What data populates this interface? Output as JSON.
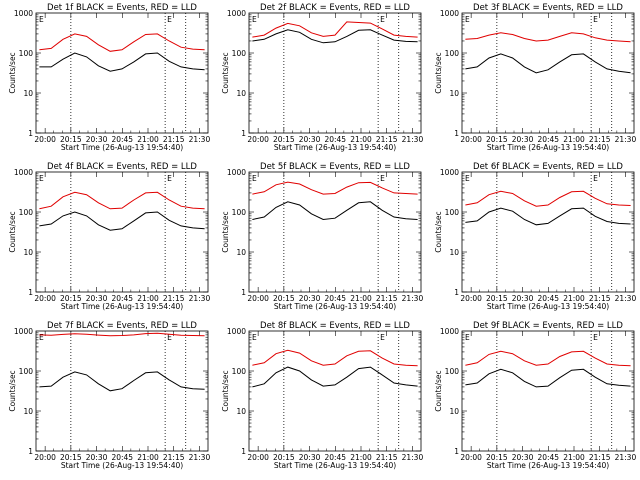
{
  "chart_data": [
    {
      "id": "det1",
      "type": "line",
      "title": "Det 1f BLACK = Events, RED = LLD",
      "ylabel": "Counts/sec",
      "xlabel": "Start Time (26-Aug-13 19:54:40)",
      "x_ticks": [
        "20:00",
        "20:15",
        "20:30",
        "20:45",
        "21:00",
        "21:15",
        "21:30"
      ],
      "y_ticks": [
        "1",
        "10",
        "100",
        "1000"
      ],
      "ylim": [
        1,
        1000
      ],
      "y_scale": "log",
      "markers": [
        "20:15",
        "21:10",
        "21:22"
      ],
      "marker_label": "E",
      "series": [
        {
          "color": "#000000",
          "values": [
            45,
            45,
            70,
            100,
            80,
            48,
            35,
            40,
            60,
            95,
            100,
            62,
            45,
            40,
            38
          ]
        },
        {
          "color": "#e00000",
          "values": [
            120,
            130,
            220,
            300,
            260,
            160,
            110,
            120,
            190,
            290,
            300,
            200,
            140,
            125,
            120
          ]
        }
      ]
    },
    {
      "id": "det2",
      "type": "line",
      "title": "Det 2f BLACK = Events, RED = LLD",
      "ylabel": "Counts/sec",
      "xlabel": "Start Time (26-Aug-13 19:54:40)",
      "x_ticks": [
        "20:00",
        "20:15",
        "20:30",
        "20:45",
        "21:00",
        "21:15",
        "21:30"
      ],
      "y_ticks": [
        "1",
        "10",
        "100",
        "1000"
      ],
      "ylim": [
        1,
        1000
      ],
      "y_scale": "log",
      "markers": [
        "20:15",
        "21:10",
        "21:22"
      ],
      "marker_label": "E",
      "series": [
        {
          "color": "#000000",
          "values": [
            200,
            220,
            300,
            380,
            330,
            220,
            180,
            190,
            260,
            370,
            380,
            280,
            210,
            195,
            190
          ]
        },
        {
          "color": "#e00000",
          "values": [
            250,
            280,
            420,
            550,
            480,
            320,
            260,
            280,
            600,
            580,
            560,
            400,
            280,
            260,
            250
          ]
        }
      ]
    },
    {
      "id": "det3",
      "type": "line",
      "title": "Det 3f BLACK = Events, RED = LLD",
      "ylabel": "Counts/sec",
      "xlabel": "Start Time (26-Aug-13 19:54:40)",
      "x_ticks": [
        "20:00",
        "20:15",
        "20:30",
        "20:45",
        "21:00",
        "21:15",
        "21:30"
      ],
      "y_ticks": [
        "1",
        "10",
        "100",
        "1000"
      ],
      "ylim": [
        1,
        1000
      ],
      "y_scale": "log",
      "markers": [
        "20:15",
        "21:10",
        "21:22"
      ],
      "marker_label": "E",
      "series": [
        {
          "color": "#000000",
          "values": [
            40,
            45,
            75,
            95,
            75,
            45,
            32,
            38,
            60,
            90,
            95,
            60,
            40,
            35,
            32
          ]
        },
        {
          "color": "#e00000",
          "values": [
            220,
            230,
            280,
            320,
            290,
            230,
            200,
            210,
            260,
            320,
            300,
            240,
            210,
            200,
            190
          ]
        }
      ]
    },
    {
      "id": "det4",
      "type": "line",
      "title": "Det 4f BLACK = Events, RED = LLD",
      "ylabel": "Counts/sec",
      "xlabel": "Start Time (26-Aug-13 19:54:40)",
      "x_ticks": [
        "20:00",
        "20:15",
        "20:30",
        "20:45",
        "21:00",
        "21:15",
        "21:30"
      ],
      "y_ticks": [
        "1",
        "10",
        "100",
        "1000"
      ],
      "ylim": [
        1,
        1000
      ],
      "y_scale": "log",
      "markers": [
        "20:15",
        "21:10",
        "21:22"
      ],
      "marker_label": "E",
      "series": [
        {
          "color": "#000000",
          "values": [
            45,
            50,
            80,
            100,
            80,
            48,
            35,
            38,
            60,
            95,
            100,
            62,
            45,
            40,
            38
          ]
        },
        {
          "color": "#e00000",
          "values": [
            120,
            140,
            240,
            310,
            270,
            170,
            120,
            125,
            200,
            300,
            310,
            200,
            140,
            125,
            120
          ]
        }
      ]
    },
    {
      "id": "det5",
      "type": "line",
      "title": "Det 5f BLACK = Events, RED = LLD",
      "ylabel": "Counts/sec",
      "xlabel": "Start Time (26-Aug-13 19:54:40)",
      "x_ticks": [
        "20:00",
        "20:15",
        "20:30",
        "20:45",
        "21:00",
        "21:15",
        "21:30"
      ],
      "y_ticks": [
        "1",
        "10",
        "100",
        "1000"
      ],
      "ylim": [
        1,
        1000
      ],
      "y_scale": "log",
      "markers": [
        "20:15",
        "21:10",
        "21:22"
      ],
      "marker_label": "E",
      "series": [
        {
          "color": "#000000",
          "values": [
            65,
            75,
            130,
            180,
            150,
            90,
            65,
            70,
            110,
            170,
            180,
            110,
            75,
            68,
            65
          ]
        },
        {
          "color": "#e00000",
          "values": [
            280,
            320,
            480,
            560,
            500,
            360,
            280,
            290,
            420,
            540,
            550,
            400,
            300,
            290,
            280
          ]
        }
      ]
    },
    {
      "id": "det6",
      "type": "line",
      "title": "Det 6f BLACK = Events, RED = LLD",
      "ylabel": "Counts/sec",
      "xlabel": "Start Time (26-Aug-13 19:54:40)",
      "x_ticks": [
        "20:00",
        "20:15",
        "20:30",
        "20:45",
        "21:00",
        "21:15",
        "21:30"
      ],
      "y_ticks": [
        "1",
        "10",
        "100",
        "1000"
      ],
      "ylim": [
        1,
        1000
      ],
      "y_scale": "log",
      "markers": [
        "20:15",
        "21:10",
        "21:22"
      ],
      "marker_label": "E",
      "series": [
        {
          "color": "#000000",
          "values": [
            55,
            60,
            100,
            125,
            105,
            65,
            48,
            52,
            80,
            120,
            125,
            78,
            58,
            52,
            50
          ]
        },
        {
          "color": "#e00000",
          "values": [
            150,
            170,
            270,
            330,
            290,
            190,
            140,
            150,
            230,
            320,
            330,
            220,
            160,
            150,
            145
          ]
        }
      ]
    },
    {
      "id": "det7",
      "type": "line",
      "title": "Det 7f BLACK = Events, RED = LLD",
      "ylabel": "Counts/sec",
      "xlabel": "Start Time (26-Aug-13 19:54:40)",
      "x_ticks": [
        "20:00",
        "20:15",
        "20:30",
        "20:45",
        "21:00",
        "21:15",
        "21:30"
      ],
      "y_ticks": [
        "1",
        "10",
        "100",
        "1000"
      ],
      "ylim": [
        1,
        1000
      ],
      "y_scale": "log",
      "markers": [
        "20:15",
        "21:10",
        "21:22"
      ],
      "marker_label": "E",
      "series": [
        {
          "color": "#000000",
          "values": [
            40,
            42,
            70,
            95,
            80,
            48,
            32,
            36,
            58,
            90,
            95,
            60,
            40,
            36,
            35
          ]
        },
        {
          "color": "#e00000",
          "values": [
            800,
            780,
            820,
            850,
            830,
            790,
            760,
            770,
            800,
            860,
            880,
            830,
            780,
            770,
            760
          ]
        }
      ]
    },
    {
      "id": "det8",
      "type": "line",
      "title": "Det 8f BLACK = Events, RED = LLD",
      "ylabel": "Counts/sec",
      "xlabel": "Start Time (26-Aug-13 19:54:40)",
      "x_ticks": [
        "20:00",
        "20:15",
        "20:30",
        "20:45",
        "21:00",
        "21:15",
        "21:30"
      ],
      "y_ticks": [
        "1",
        "10",
        "100",
        "1000"
      ],
      "ylim": [
        1,
        1000
      ],
      "y_scale": "log",
      "markers": [
        "20:15",
        "21:10",
        "21:22"
      ],
      "marker_label": "E",
      "series": [
        {
          "color": "#000000",
          "values": [
            40,
            48,
            90,
            125,
            100,
            60,
            42,
            45,
            70,
            115,
            125,
            80,
            50,
            45,
            42
          ]
        },
        {
          "color": "#e00000",
          "values": [
            140,
            160,
            270,
            330,
            280,
            180,
            140,
            150,
            240,
            310,
            320,
            210,
            150,
            140,
            135
          ]
        }
      ]
    },
    {
      "id": "det9",
      "type": "line",
      "title": "Det 9f BLACK = Events, RED = LLD",
      "ylabel": "Counts/sec",
      "xlabel": "Start Time (26-Aug-13 19:54:40)",
      "x_ticks": [
        "20:00",
        "20:15",
        "20:30",
        "20:45",
        "21:00",
        "21:15",
        "21:30"
      ],
      "y_ticks": [
        "1",
        "10",
        "100",
        "1000"
      ],
      "ylim": [
        1,
        1000
      ],
      "y_scale": "log",
      "markers": [
        "20:15",
        "21:10",
        "21:22"
      ],
      "marker_label": "E",
      "series": [
        {
          "color": "#000000",
          "values": [
            45,
            50,
            85,
            110,
            90,
            55,
            40,
            42,
            68,
            105,
            110,
            70,
            48,
            44,
            42
          ]
        },
        {
          "color": "#e00000",
          "values": [
            140,
            160,
            260,
            310,
            270,
            180,
            140,
            150,
            230,
            300,
            310,
            210,
            150,
            140,
            135
          ]
        }
      ]
    }
  ]
}
